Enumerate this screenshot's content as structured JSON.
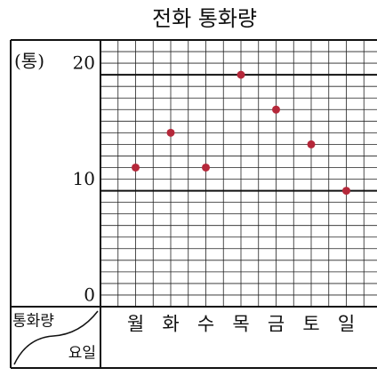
{
  "chart_data": {
    "type": "line",
    "title": "전화 통화량",
    "y_label": "(통)",
    "corner_top": "통화량",
    "corner_bottom": "요일",
    "categories": [
      "월",
      "화",
      "수",
      "목",
      "금",
      "토",
      "일"
    ],
    "series": [
      {
        "name": "통화량",
        "color": "#b5283a",
        "values": [
          12,
          15,
          12,
          20,
          17,
          14,
          10
        ]
      }
    ],
    "ylim": [
      0,
      23
    ],
    "yticks": [
      0,
      10,
      20
    ],
    "minor_yticks": [
      1,
      2,
      3,
      4,
      5,
      6,
      7,
      8,
      9,
      11,
      12,
      13,
      14,
      15,
      16,
      17,
      18,
      19,
      21,
      22
    ],
    "grid": true
  }
}
